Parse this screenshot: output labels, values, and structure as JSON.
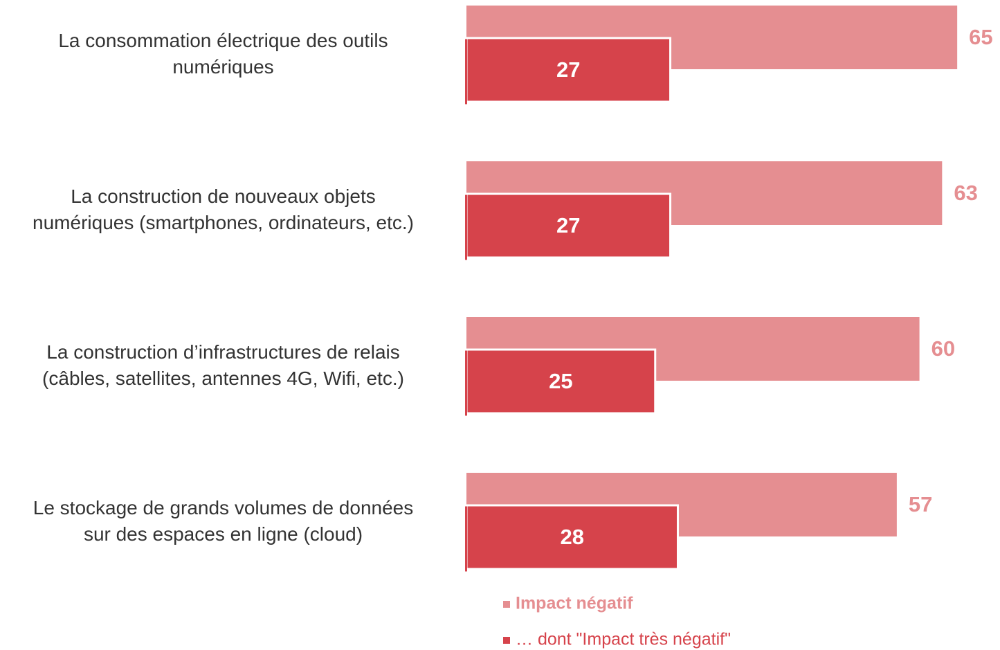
{
  "chart_data": {
    "type": "bar",
    "categories": [
      "La consommation électrique des outils\nnumériques",
      "La construction de nouveaux objets\nnumériques (smartphones, ordinateurs, etc.)",
      "La construction d’infrastructures de relais\n(câbles, satellites, antennes 4G, Wifi, etc.)",
      "Le stockage de grands volumes de données\nsur des espaces en ligne (cloud)"
    ],
    "series": [
      {
        "name": "Impact négatif",
        "color": "#e58e91",
        "values": [
          65,
          63,
          60,
          57
        ]
      },
      {
        "name": "… dont \"Impact très négatif\"",
        "color": "#d6434b",
        "values": [
          27,
          27,
          25,
          28
        ]
      }
    ]
  }
}
